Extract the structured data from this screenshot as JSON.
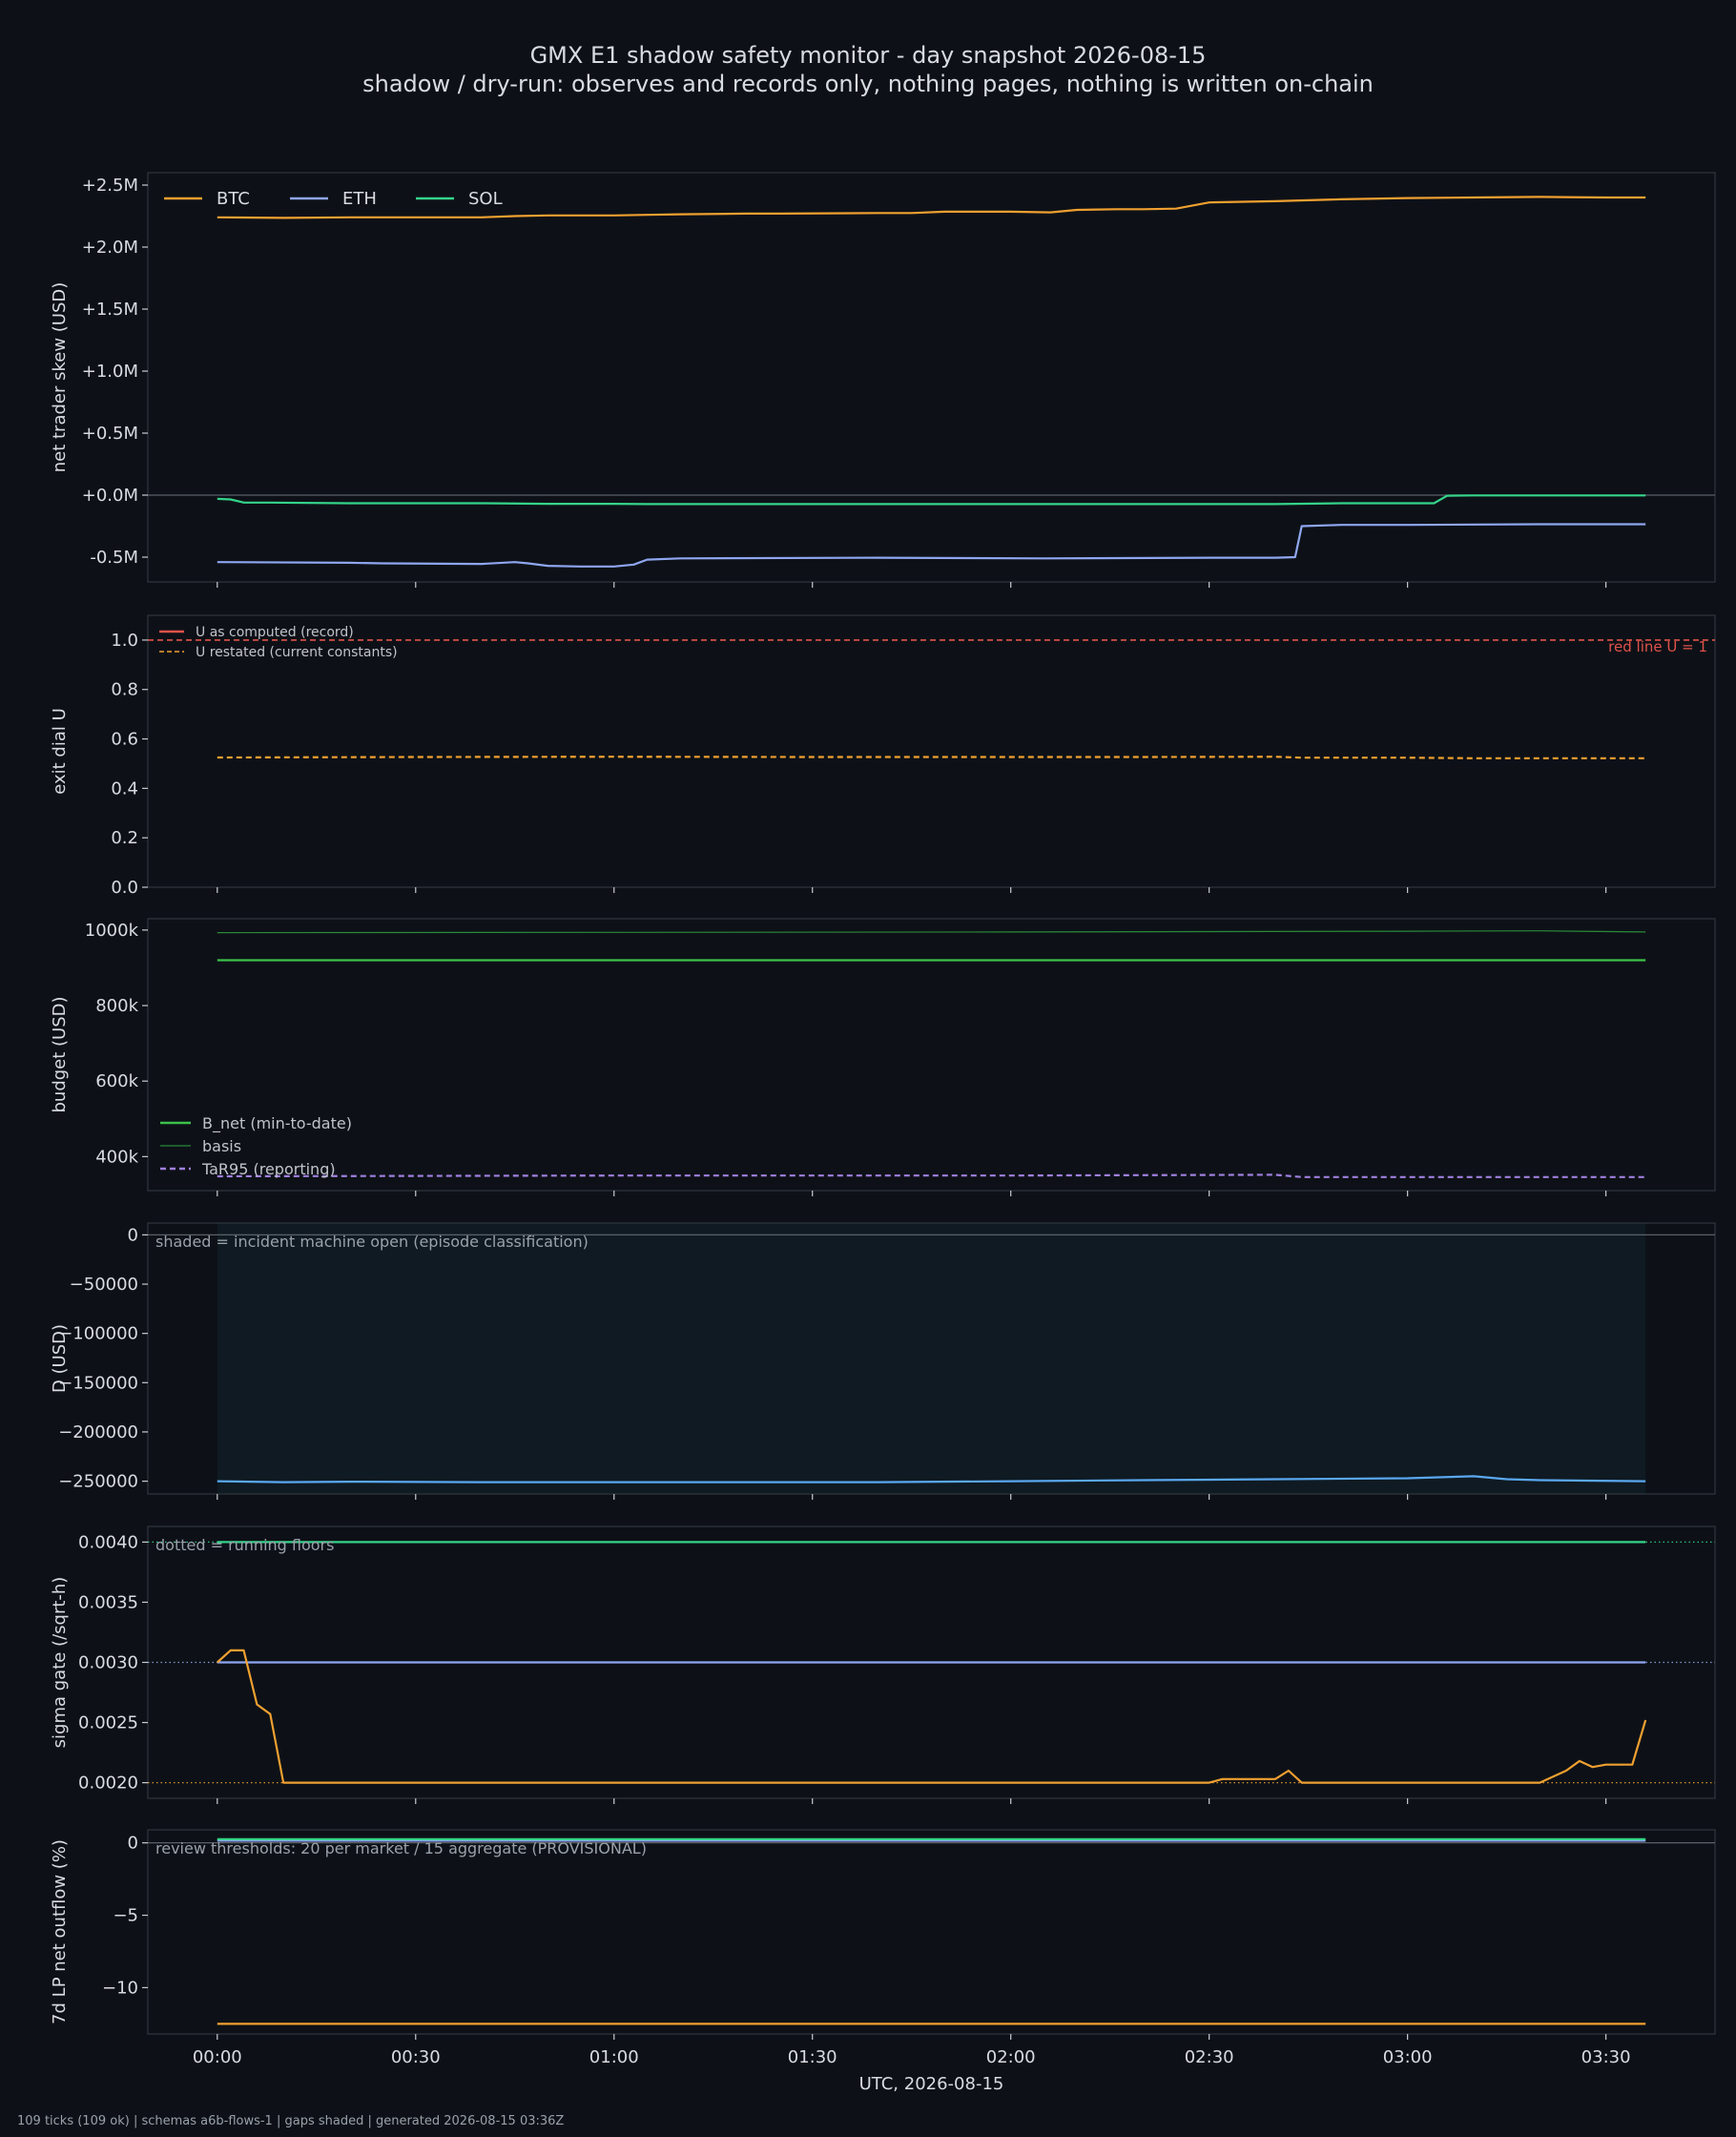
{
  "header": {
    "title": "GMX E1 shadow safety monitor - day snapshot 2026-08-15",
    "subtitle": "shadow / dry-run: observes and records only, nothing pages, nothing is written on-chain"
  },
  "footer": "109 ticks (109 ok) | schemas a6b-flows-1 | gaps shaded | generated 2026-08-15 03:36Z",
  "colors": {
    "background": "#0d1117",
    "axes_frame": "#30363d",
    "text": "#d0d4da",
    "btc": "#f0a030",
    "eth": "#8fa6f0",
    "sol": "#35d48a",
    "red_line": "#e0524a",
    "restated": "#f0a030",
    "b_net": "#3cc24a",
    "basis": "#2a8a3a",
    "tar95": "#a080e0",
    "d_line": "#5aa8f0",
    "shade": "#0f1a22"
  },
  "chart_data": [
    {
      "type": "line",
      "ylabel": "net trader skew (USD)",
      "ylim": [
        -700000,
        2600000
      ],
      "yticks": [
        -500000,
        0,
        500000,
        1000000,
        1500000,
        2000000,
        2500000
      ],
      "ytick_labels": [
        "-0.5M",
        "+0.0M",
        "+0.5M",
        "+1.0M",
        "+1.5M",
        "+2.0M",
        "+2.5M"
      ],
      "zero_line": true,
      "legend": "top-left",
      "series": [
        {
          "name": "BTC",
          "color": "btc",
          "t": [
            0,
            10,
            20,
            30,
            40,
            45,
            50,
            60,
            65,
            70,
            80,
            85,
            100,
            105,
            110,
            120,
            126,
            130,
            136,
            140,
            145,
            150,
            160,
            170,
            180,
            190,
            200,
            210,
            216
          ],
          "values": [
            2240000,
            2235000,
            2240000,
            2240000,
            2240000,
            2250000,
            2255000,
            2255000,
            2260000,
            2265000,
            2270000,
            2270000,
            2275000,
            2275000,
            2285000,
            2285000,
            2280000,
            2300000,
            2305000,
            2305000,
            2310000,
            2360000,
            2370000,
            2385000,
            2395000,
            2400000,
            2405000,
            2400000,
            2400000
          ]
        },
        {
          "name": "ETH",
          "color": "eth",
          "t": [
            0,
            20,
            25,
            40,
            45,
            47,
            50,
            55,
            60,
            63,
            65,
            70,
            100,
            125,
            150,
            155,
            160,
            163,
            164,
            170,
            180,
            200,
            216
          ],
          "values": [
            -540000,
            -545000,
            -550000,
            -555000,
            -540000,
            -550000,
            -570000,
            -575000,
            -575000,
            -560000,
            -520000,
            -510000,
            -505000,
            -510000,
            -505000,
            -505000,
            -505000,
            -500000,
            -250000,
            -240000,
            -240000,
            -235000,
            -235000
          ]
        },
        {
          "name": "SOL",
          "color": "sol",
          "t": [
            0,
            2,
            4,
            8,
            20,
            40,
            50,
            60,
            65,
            70,
            100,
            130,
            150,
            160,
            170,
            180,
            184,
            186,
            190,
            200,
            216
          ],
          "values": [
            -30000,
            -35000,
            -60000,
            -60000,
            -65000,
            -65000,
            -70000,
            -70000,
            -72000,
            -72000,
            -72000,
            -72000,
            -72000,
            -72000,
            -65000,
            -65000,
            -65000,
            -5000,
            -2000,
            -2000,
            -2000
          ]
        }
      ]
    },
    {
      "type": "line",
      "ylabel": "exit dial U",
      "ylim": [
        0,
        1.1
      ],
      "yticks": [
        0,
        0.2,
        0.4,
        0.6,
        0.8,
        1.0
      ],
      "ytick_labels": [
        "0.0",
        "0.2",
        "0.4",
        "0.6",
        "0.8",
        "1.0"
      ],
      "legend": "top-left",
      "legend_font": "small",
      "annotation": "red line U = 1",
      "hline": {
        "value": 1.0,
        "color": "red_line",
        "style": "dashed",
        "full_width": true
      },
      "series": [
        {
          "name": "U as computed (record)",
          "color": "red_line",
          "style": "solid",
          "legend_only": true,
          "t": [],
          "values": []
        },
        {
          "name": "U restated (current constants)",
          "color": "restated",
          "style": "dashed",
          "t": [
            0,
            30,
            60,
            90,
            120,
            140,
            160,
            164,
            180,
            190,
            216
          ],
          "values": [
            0.525,
            0.527,
            0.528,
            0.527,
            0.527,
            0.527,
            0.528,
            0.524,
            0.524,
            0.522,
            0.522
          ]
        }
      ]
    },
    {
      "type": "line",
      "ylabel": "budget (USD)",
      "ylim": [
        310000,
        1030000
      ],
      "yticks": [
        400000,
        600000,
        800000,
        1000000
      ],
      "ytick_labels": [
        "400k",
        "600k",
        "800k",
        "1000k"
      ],
      "legend": "bottom-left",
      "series": [
        {
          "name": "B_net (min-to-date)",
          "color": "b_net",
          "style": "solid",
          "t": [
            0,
            216
          ],
          "values": [
            920000,
            920000
          ]
        },
        {
          "name": "basis",
          "color": "basis",
          "style": "thin",
          "t": [
            0,
            60,
            120,
            180,
            200,
            216
          ],
          "values": [
            993000,
            994000,
            995000,
            997000,
            998000,
            995000
          ]
        },
        {
          "name": "TaR95 (reporting)",
          "color": "tar95",
          "style": "dashed",
          "t": [
            0,
            60,
            120,
            160,
            164,
            216
          ],
          "values": [
            348000,
            350000,
            350000,
            352000,
            346000,
            346000
          ]
        }
      ]
    },
    {
      "type": "area",
      "ylabel": "D (USD)",
      "ylim": [
        -263000,
        12000
      ],
      "yticks": [
        -250000,
        -200000,
        -150000,
        -100000,
        -50000,
        0
      ],
      "ytick_labels": [
        "−250000",
        "−200000",
        "−150000",
        "−100000",
        "−50000",
        "0"
      ],
      "zero_line": true,
      "annotation": "shaded = incident machine open (episode classification)",
      "shaded_span": [
        0,
        216
      ],
      "series": [
        {
          "name": "",
          "color": "d_line",
          "t": [
            0,
            10,
            20,
            40,
            60,
            80,
            100,
            120,
            140,
            160,
            180,
            190,
            195,
            200,
            216
          ],
          "values": [
            -250000,
            -251000,
            -250500,
            -251000,
            -251000,
            -251000,
            -251000,
            -250000,
            -249000,
            -248000,
            -247000,
            -245000,
            -248000,
            -249000,
            -250000
          ]
        }
      ]
    },
    {
      "type": "line",
      "ylabel": "sigma gate (/sqrt-h)",
      "ylim": [
        0.00187,
        0.00413
      ],
      "yticks": [
        0.002,
        0.0025,
        0.003,
        0.0035,
        0.004
      ],
      "ytick_labels": [
        "0.0020",
        "0.0025",
        "0.0030",
        "0.0035",
        "0.0040"
      ],
      "annotation": "dotted = running floors",
      "floors": [
        {
          "value": 0.004,
          "color": "sol"
        },
        {
          "value": 0.003,
          "color": "eth"
        },
        {
          "value": 0.002,
          "color": "btc"
        }
      ],
      "series": [
        {
          "name": "",
          "color": "sol",
          "t": [
            0,
            216
          ],
          "values": [
            0.004,
            0.004
          ]
        },
        {
          "name": "",
          "color": "eth",
          "t": [
            0,
            216
          ],
          "values": [
            0.003,
            0.003
          ]
        },
        {
          "name": "",
          "color": "btc",
          "t": [
            0,
            2,
            4,
            6,
            8,
            10,
            12,
            60,
            120,
            150,
            152,
            155,
            160,
            162,
            164,
            170,
            200,
            204,
            206,
            208,
            210,
            212,
            214,
            216
          ],
          "values": [
            0.003,
            0.0031,
            0.0031,
            0.00265,
            0.00257,
            0.002,
            0.002,
            0.002,
            0.002,
            0.002,
            0.00203,
            0.00203,
            0.00203,
            0.0021,
            0.002,
            0.002,
            0.002,
            0.0021,
            0.00218,
            0.00213,
            0.00215,
            0.00215,
            0.00215,
            0.00252
          ]
        }
      ]
    },
    {
      "type": "line",
      "ylabel": "7d LP net outflow (%)",
      "ylim": [
        -13.2,
        0.9
      ],
      "yticks": [
        -10,
        -5,
        0
      ],
      "ytick_labels": [
        "−10",
        "−5",
        "0"
      ],
      "xlabel": "UTC, 2026-08-15",
      "xticks": [
        0,
        30,
        60,
        90,
        120,
        150,
        180,
        210
      ],
      "xtick_labels": [
        "00:00",
        "00:30",
        "01:00",
        "01:30",
        "02:00",
        "02:30",
        "03:00",
        "03:30"
      ],
      "xlim": [
        -10.5,
        226.5
      ],
      "zero_line": true,
      "annotation": "review thresholds: 20 per market / 15 aggregate (PROVISIONAL)",
      "series": [
        {
          "name": "",
          "color": "eth",
          "t": [
            0,
            216
          ],
          "values": [
            0.15,
            0.15
          ]
        },
        {
          "name": "",
          "color": "sol",
          "t": [
            0,
            216
          ],
          "values": [
            0.25,
            0.25
          ]
        },
        {
          "name": "",
          "color": "btc",
          "t": [
            0,
            216
          ],
          "values": [
            -12.5,
            -12.5
          ]
        }
      ]
    }
  ]
}
